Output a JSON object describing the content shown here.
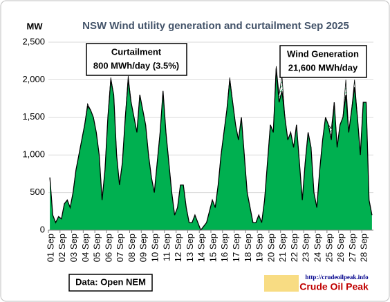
{
  "chart_data": {
    "type": "area",
    "title": "NSW Wind utility generation and curtailment Sep 2025",
    "y_label": "MW",
    "categories": [
      "01 Sep",
      null,
      null,
      null,
      "02 Sep",
      null,
      null,
      null,
      "03 Sep",
      null,
      null,
      null,
      "04 Sep",
      null,
      null,
      null,
      "05 Sep",
      null,
      null,
      null,
      "06 Sep",
      null,
      null,
      null,
      "07 Sep",
      null,
      null,
      null,
      "08 Sep",
      null,
      null,
      null,
      "09 Sep",
      null,
      null,
      null,
      "10 Sep",
      null,
      null,
      null,
      "11 Sep",
      null,
      null,
      null,
      "12 Sep",
      null,
      null,
      null,
      "13 Sep",
      null,
      null,
      null,
      "14 Sep",
      null,
      null,
      null,
      "15 Sep",
      null,
      null,
      null,
      "16 Sep",
      null,
      null,
      null,
      "17 Sep",
      null,
      null,
      null,
      "18 Sep",
      null,
      null,
      null,
      "19 Sep",
      null,
      null,
      null,
      "20 Sep",
      null,
      null,
      null,
      "21 Sep",
      null,
      null,
      null,
      "22 Sep",
      null,
      null,
      null,
      "23 Sep",
      null,
      null,
      null,
      "24 Sep",
      null,
      null,
      null,
      "25 Sep",
      null,
      null,
      null,
      "26 Sep",
      null,
      null,
      null,
      "27 Sep",
      null,
      null,
      null,
      "28 Sep",
      null,
      null,
      null
    ],
    "series": [
      {
        "name": "Wind Generation",
        "color": "#00b050",
        "line_color": "#000000",
        "values": [
          700,
          200,
          100,
          180,
          150,
          350,
          400,
          300,
          500,
          800,
          1000,
          1200,
          1400,
          1650,
          1600,
          1500,
          1300,
          1000,
          400,
          800,
          1500,
          2000,
          1800,
          1000,
          600,
          900,
          1500,
          2000,
          1700,
          1500,
          1300,
          1800,
          1600,
          1400,
          1000,
          700,
          500,
          900,
          1300,
          1850,
          1300,
          900,
          500,
          200,
          300,
          600,
          600,
          300,
          100,
          100,
          200,
          100,
          0,
          50,
          100,
          250,
          400,
          300,
          600,
          1000,
          1300,
          1600,
          2000,
          1700,
          1400,
          1200,
          1500,
          1000,
          500,
          300,
          100,
          100,
          200,
          100,
          400,
          900,
          1400,
          1300,
          2150,
          1700,
          1850,
          1500,
          1200,
          1300,
          1100,
          1400,
          900,
          400,
          900,
          1300,
          1100,
          500,
          300,
          800,
          1200,
          1500,
          1400,
          1200,
          1700,
          1100,
          1400,
          1500,
          1800,
          1300,
          1600,
          1900,
          1500,
          1000,
          1700,
          1700,
          400,
          200
        ]
      },
      {
        "name": "Curtailment",
        "color": "#00b050",
        "values": [
          0,
          0,
          0,
          0,
          0,
          0,
          0,
          0,
          0,
          0,
          0,
          0,
          0,
          30,
          0,
          0,
          0,
          0,
          0,
          0,
          0,
          30,
          0,
          0,
          0,
          0,
          0,
          50,
          0,
          0,
          0,
          0,
          0,
          0,
          0,
          0,
          0,
          0,
          0,
          0,
          0,
          0,
          0,
          0,
          0,
          0,
          0,
          0,
          0,
          0,
          0,
          0,
          0,
          0,
          0,
          0,
          0,
          0,
          0,
          0,
          0,
          0,
          30,
          0,
          0,
          0,
          0,
          0,
          0,
          0,
          0,
          0,
          0,
          0,
          0,
          0,
          0,
          0,
          30,
          100,
          200,
          0,
          0,
          0,
          0,
          0,
          0,
          0,
          0,
          0,
          0,
          0,
          0,
          0,
          0,
          0,
          0,
          150,
          0,
          0,
          0,
          0,
          200,
          0,
          0,
          100,
          0,
          0,
          0,
          0,
          0,
          0
        ]
      }
    ],
    "ylim": [
      0,
      2500
    ],
    "yticks": [
      0,
      500,
      {
        "value": 1000,
        "label": "1,000"
      },
      {
        "value": 1500,
        "label": "1,500"
      },
      {
        "value": 2000,
        "label": "2,000"
      },
      {
        "value": 2500,
        "label": "2,500"
      }
    ],
    "grid": true,
    "annotations": {
      "curtailment_value": "800 MWh/day (3.5%)",
      "generation_value": "21,600 MWh/day",
      "source": "Data: Open NEM",
      "logo_url": "http://crudeoilpeak.info",
      "logo_name": "Crude Oil Peak"
    }
  }
}
